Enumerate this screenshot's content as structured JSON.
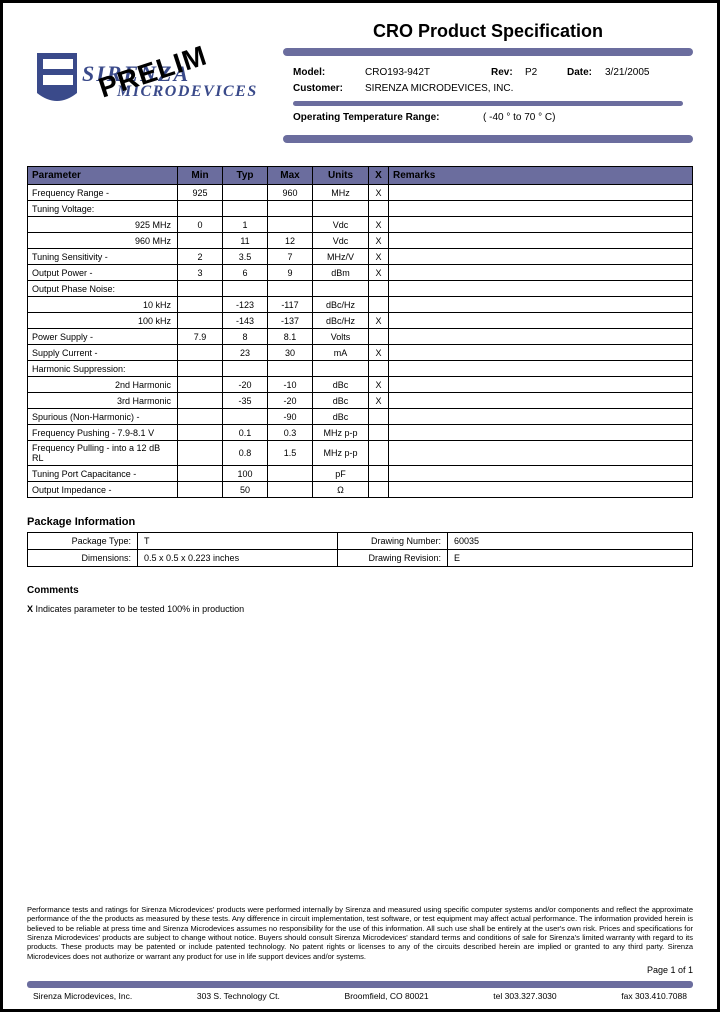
{
  "header": {
    "logo": {
      "line1": "SIRENZA",
      "line2": "MICRODEVICES",
      "stamp": "PRELIM"
    },
    "title": "CRO Product Specification",
    "fields": {
      "model_label": "Model:",
      "model": "CRO193-942T",
      "rev_label": "Rev:",
      "rev": "P2",
      "date_label": "Date:",
      "date": "3/21/2005",
      "customer_label": "Customer:",
      "customer": "SIRENZA MICRODEVICES, INC.",
      "temp_label": "Operating Temperature Range:",
      "temp": "( -40 ° to 70 ° C)"
    }
  },
  "colors": {
    "bar": "#6b6d9e",
    "logo_text": "#3a4a8a",
    "border": "#000000",
    "background": "#ffffff"
  },
  "spec_table": {
    "headers": [
      "Parameter",
      "Min",
      "Typ",
      "Max",
      "Units",
      "X",
      "Remarks"
    ],
    "rows": [
      {
        "p": "Frequency Range -",
        "min": "925",
        "typ": "",
        "max": "960",
        "u": "MHz",
        "x": "X",
        "r": ""
      },
      {
        "p": "Tuning Voltage:",
        "min": "",
        "typ": "",
        "max": "",
        "u": "",
        "x": "",
        "r": ""
      },
      {
        "p": "925 MHz",
        "indent": true,
        "min": "0",
        "typ": "1",
        "max": "",
        "u": "Vdc",
        "x": "X",
        "r": ""
      },
      {
        "p": "960 MHz",
        "indent": true,
        "min": "",
        "typ": "11",
        "max": "12",
        "u": "Vdc",
        "x": "X",
        "r": ""
      },
      {
        "p": "Tuning Sensitivity -",
        "min": "2",
        "typ": "3.5",
        "max": "7",
        "u": "MHz/V",
        "x": "X",
        "r": ""
      },
      {
        "p": "Output Power -",
        "min": "3",
        "typ": "6",
        "max": "9",
        "u": "dBm",
        "x": "X",
        "r": ""
      },
      {
        "p": "Output Phase Noise:",
        "min": "",
        "typ": "",
        "max": "",
        "u": "",
        "x": "",
        "r": ""
      },
      {
        "p": "10 kHz",
        "indent": true,
        "min": "",
        "typ": "-123",
        "max": "-117",
        "u": "dBc/Hz",
        "x": "",
        "r": ""
      },
      {
        "p": "100 kHz",
        "indent": true,
        "min": "",
        "typ": "-143",
        "max": "-137",
        "u": "dBc/Hz",
        "x": "X",
        "r": ""
      },
      {
        "p": "Power Supply -",
        "min": "7.9",
        "typ": "8",
        "max": "8.1",
        "u": "Volts",
        "x": "",
        "r": ""
      },
      {
        "p": "Supply Current -",
        "min": "",
        "typ": "23",
        "max": "30",
        "u": "mA",
        "x": "X",
        "r": ""
      },
      {
        "p": "Harmonic Suppression:",
        "min": "",
        "typ": "",
        "max": "",
        "u": "",
        "x": "",
        "r": ""
      },
      {
        "p": "2nd Harmonic",
        "indent": true,
        "min": "",
        "typ": "-20",
        "max": "-10",
        "u": "dBc",
        "x": "X",
        "r": ""
      },
      {
        "p": "3rd Harmonic",
        "indent": true,
        "min": "",
        "typ": "-35",
        "max": "-20",
        "u": "dBc",
        "x": "X",
        "r": ""
      },
      {
        "p": "Spurious (Non-Harmonic) -",
        "min": "",
        "typ": "",
        "max": "-90",
        "u": "dBc",
        "x": "",
        "r": ""
      },
      {
        "p": "Frequency Pushing - 7.9-8.1 V",
        "min": "",
        "typ": "0.1",
        "max": "0.3",
        "u": "MHz p-p",
        "x": "",
        "r": ""
      },
      {
        "p": "Frequency Pulling - into a 12 dB RL",
        "min": "",
        "typ": "0.8",
        "max": "1.5",
        "u": "MHz p-p",
        "x": "",
        "r": ""
      },
      {
        "p": "Tuning Port Capacitance -",
        "min": "",
        "typ": "100",
        "max": "",
        "u": "pF",
        "x": "",
        "r": ""
      },
      {
        "p": "Output Impedance -",
        "min": "",
        "typ": "50",
        "max": "",
        "u": "Ω",
        "x": "",
        "r": ""
      }
    ]
  },
  "package": {
    "title": "Package Information",
    "rows": [
      {
        "l1": "Package Type:",
        "v1": "T",
        "l2": "Drawing Number:",
        "v2": "60035"
      },
      {
        "l1": "Dimensions:",
        "v1": "0.5 x 0.5 x 0.223 inches",
        "l2": "Drawing Revision:",
        "v2": "E"
      }
    ]
  },
  "comments": {
    "title": "Comments",
    "body": "X Indicates parameter to be tested 100% in production"
  },
  "disclaimer": "Performance tests and ratings for Sirenza Microdevices' products were performed internally by Sirenza and measured using specific computer systems and/or components and reflect the approximate performance of the the products as measured by these tests. Any difference in circuit implementation, test software, or test equipment may affect actual performance. The information provided herein is believed to be reliable at press time and Sirenza Microdevices assumes no responsibility for the use of this information. All such use shall be entirely at the user's own risk. Prices and specifications for Sirenza Microdevices' products are subject to change without notice. Buyers should consult Sirenza Microdevices' standard terms and conditions of sale for Sirenza's limited warranty with regard to its products. These products may be patented or include patented technology. No patent rights or licenses to any of the circuits described herein are implied or granted to any third party. Sirenza Microdevices does not authorize or warrant any product for use in life support devices and/or systems.",
  "pagenum": "Page 1 of 1",
  "footer": {
    "company": "Sirenza Microdevices, Inc.",
    "addr": "303 S. Technology Ct.",
    "city": "Broomfield, CO 80021",
    "tel": "tel 303.327.3030",
    "fax": "fax 303.410.7088"
  }
}
